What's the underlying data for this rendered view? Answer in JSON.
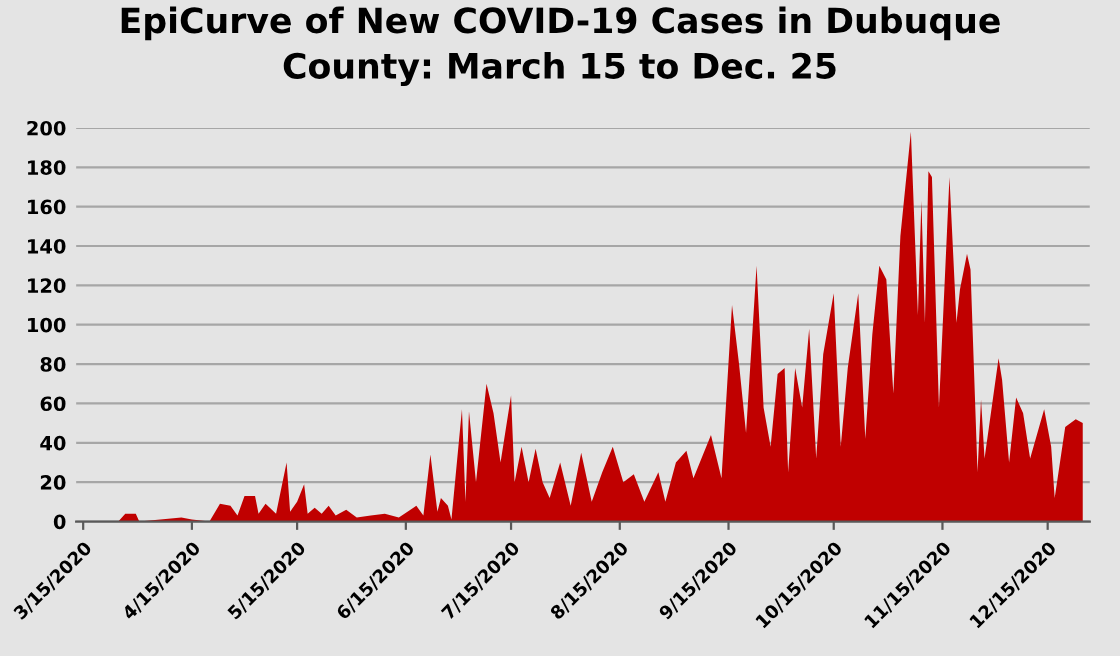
{
  "chart_data": {
    "type": "area",
    "title": "EpiCurve of New COVID-19 Cases in Dubuque\nCounty: March 15 to Dec. 25",
    "x": [
      "2020-03-15",
      "2020-03-25",
      "2020-03-27",
      "2020-03-30",
      "2020-03-31",
      "2020-04-06",
      "2020-04-12",
      "2020-04-15",
      "2020-04-20",
      "2020-04-23",
      "2020-04-26",
      "2020-04-28",
      "2020-04-30",
      "2020-05-03",
      "2020-05-04",
      "2020-05-06",
      "2020-05-09",
      "2020-05-12",
      "2020-05-13",
      "2020-05-15",
      "2020-05-17",
      "2020-05-18",
      "2020-05-20",
      "2020-05-22",
      "2020-05-24",
      "2020-05-26",
      "2020-05-29",
      "2020-06-01",
      "2020-06-05",
      "2020-06-09",
      "2020-06-13",
      "2020-06-18",
      "2020-06-20",
      "2020-06-22",
      "2020-06-24",
      "2020-06-25",
      "2020-06-27",
      "2020-06-28",
      "2020-07-01",
      "2020-07-02",
      "2020-07-03",
      "2020-07-05",
      "2020-07-08",
      "2020-07-10",
      "2020-07-12",
      "2020-07-15",
      "2020-07-16",
      "2020-07-18",
      "2020-07-20",
      "2020-07-22",
      "2020-07-24",
      "2020-07-26",
      "2020-07-29",
      "2020-08-01",
      "2020-08-04",
      "2020-08-07",
      "2020-08-10",
      "2020-08-13",
      "2020-08-16",
      "2020-08-19",
      "2020-08-22",
      "2020-08-26",
      "2020-08-28",
      "2020-08-31",
      "2020-09-03",
      "2020-09-05",
      "2020-09-10",
      "2020-09-13",
      "2020-09-16",
      "2020-09-18",
      "2020-09-20",
      "2020-09-23",
      "2020-09-25",
      "2020-09-27",
      "2020-09-29",
      "2020-10-01",
      "2020-10-02",
      "2020-10-04",
      "2020-10-06",
      "2020-10-08",
      "2020-10-10",
      "2020-10-12",
      "2020-10-15",
      "2020-10-17",
      "2020-10-19",
      "2020-10-22",
      "2020-10-24",
      "2020-10-26",
      "2020-10-28",
      "2020-10-30",
      "2020-11-01",
      "2020-11-03",
      "2020-11-06",
      "2020-11-08",
      "2020-11-09",
      "2020-11-10",
      "2020-11-11",
      "2020-11-12",
      "2020-11-14",
      "2020-11-17",
      "2020-11-19",
      "2020-11-20",
      "2020-11-22",
      "2020-11-23",
      "2020-11-25",
      "2020-11-26",
      "2020-11-27",
      "2020-12-01",
      "2020-12-02",
      "2020-12-04",
      "2020-12-06",
      "2020-12-08",
      "2020-12-10",
      "2020-12-14",
      "2020-12-16",
      "2020-12-17",
      "2020-12-20",
      "2020-12-23",
      "2020-12-25"
    ],
    "series": [
      {
        "color": "#c00000",
        "values": [
          0,
          0,
          4,
          4,
          0,
          1,
          2,
          1,
          0,
          9,
          8,
          3,
          13,
          13,
          4,
          9,
          4,
          30,
          5,
          10,
          19,
          4,
          7,
          4,
          8,
          3,
          6,
          2,
          3,
          4,
          2,
          8,
          3,
          34,
          5,
          12,
          8,
          1,
          57,
          10,
          56,
          20,
          70,
          55,
          30,
          64,
          20,
          38,
          20,
          37,
          20,
          12,
          30,
          8,
          35,
          10,
          25,
          38,
          20,
          24,
          10,
          25,
          10,
          30,
          36,
          22,
          44,
          22,
          110,
          80,
          45,
          130,
          58,
          38,
          75,
          78,
          25,
          78,
          58,
          98,
          32,
          85,
          116,
          38,
          78,
          116,
          42,
          95,
          130,
          123,
          65,
          145,
          198,
          105,
          163,
          101,
          178,
          175,
          58,
          175,
          101,
          118,
          136,
          128,
          25,
          62,
          32,
          83,
          72,
          30,
          63,
          55,
          32,
          57,
          38,
          12,
          48,
          52,
          50
        ]
      }
    ],
    "xlim": [
      "2020-03-13",
      "2020-12-27"
    ],
    "xticks": [
      {
        "value": "2020-03-15",
        "label": "3/15/2020"
      },
      {
        "value": "2020-04-15",
        "label": "4/15/2020"
      },
      {
        "value": "2020-05-15",
        "label": "5/15/2020"
      },
      {
        "value": "2020-06-15",
        "label": "6/15/2020"
      },
      {
        "value": "2020-07-15",
        "label": "7/15/2020"
      },
      {
        "value": "2020-08-15",
        "label": "8/15/2020"
      },
      {
        "value": "2020-09-15",
        "label": "9/15/2020"
      },
      {
        "value": "2020-10-15",
        "label": "10/15/2020"
      },
      {
        "value": "2020-11-15",
        "label": "11/15/2020"
      },
      {
        "value": "2020-12-15",
        "label": "12/15/2020"
      }
    ],
    "ylim": [
      0,
      200
    ],
    "yticks": [
      0,
      20,
      40,
      60,
      80,
      100,
      120,
      140,
      160,
      180,
      200
    ],
    "grid": "y",
    "legend": false
  }
}
